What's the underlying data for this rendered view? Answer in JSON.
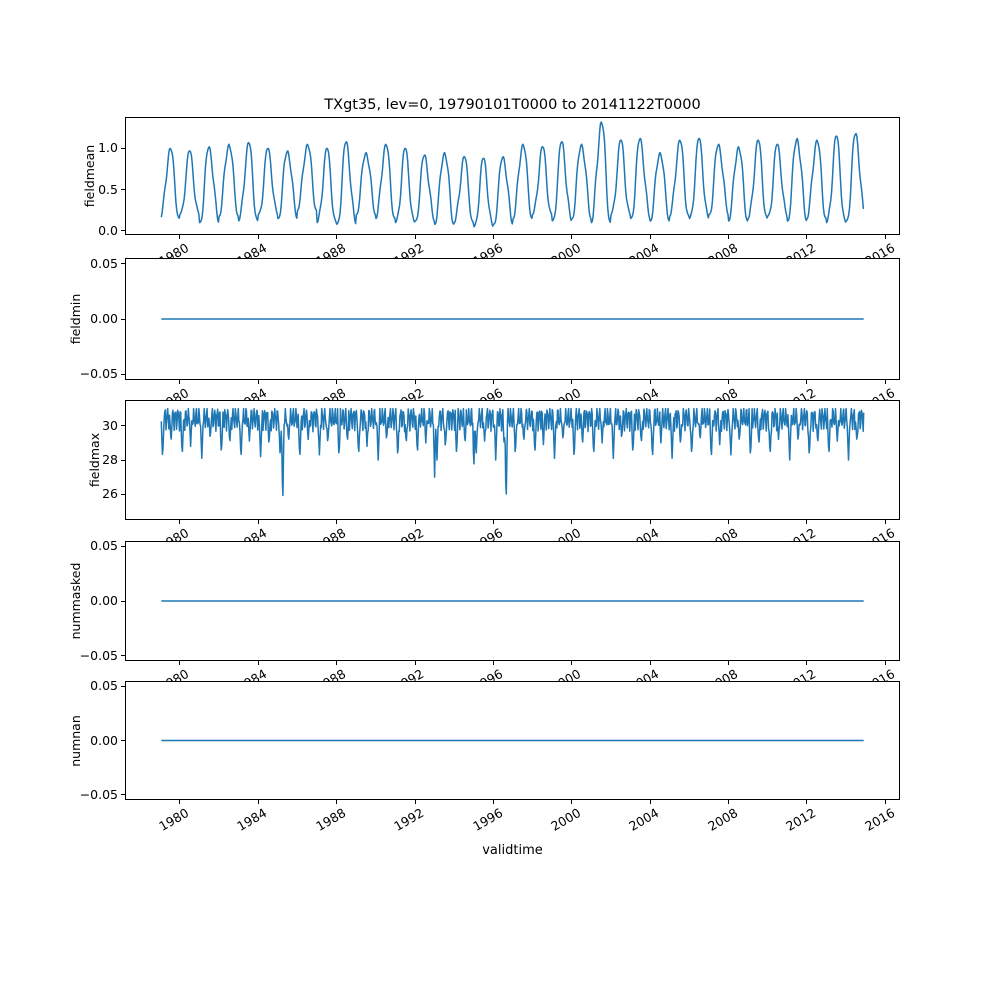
{
  "title": "TXgt35, lev=0, 19790101T0000 to 20141122T0000",
  "line_color": "#1f77b4",
  "xaxis": {
    "label": "validtime",
    "xlim": [
      1977.2,
      2016.75
    ],
    "ticks": [
      1980,
      1984,
      1988,
      1992,
      1996,
      2000,
      2004,
      2008,
      2012,
      2016
    ],
    "tick_labels": [
      "1980",
      "1984",
      "1988",
      "1992",
      "1996",
      "2000",
      "2004",
      "2008",
      "2012",
      "2016"
    ]
  },
  "chart_data": [
    {
      "name": "fieldmean",
      "type": "line",
      "ylabel": "fieldmean",
      "ylim": [
        -0.05,
        1.38
      ],
      "yticks": [
        0.0,
        0.5,
        1.0
      ],
      "ytick_labels": [
        "0.0",
        "0.5",
        "1.0"
      ],
      "series": {
        "kind": "seasonal",
        "x_start": 1979.05,
        "x_end": 2014.9,
        "base_year": 1979,
        "annual_peaks": [
          1.0,
          0.97,
          1.02,
          1.05,
          1.07,
          1.0,
          0.97,
          1.05,
          1.0,
          1.08,
          0.95,
          1.05,
          1.0,
          0.92,
          0.95,
          0.9,
          0.88,
          0.9,
          1.05,
          1.02,
          1.08,
          1.05,
          1.32,
          1.1,
          1.12,
          0.95,
          1.1,
          1.12,
          1.05,
          1.02,
          1.1,
          1.05,
          1.12,
          1.1,
          1.15,
          1.18
        ],
        "annual_troughs": [
          0.15,
          0.2,
          0.1,
          0.18,
          0.12,
          0.2,
          0.15,
          0.25,
          0.1,
          0.08,
          0.2,
          0.15,
          0.1,
          0.12,
          0.08,
          0.1,
          0.05,
          0.08,
          0.15,
          0.2,
          0.12,
          0.15,
          0.1,
          0.2,
          0.15,
          0.12,
          0.18,
          0.15,
          0.2,
          0.12,
          0.15,
          0.18,
          0.12,
          0.15,
          0.1,
          0.12
        ]
      }
    },
    {
      "name": "fieldmin",
      "type": "line",
      "ylabel": "fieldmin",
      "ylim": [
        -0.055,
        0.055
      ],
      "yticks": [
        -0.05,
        0.0,
        0.05
      ],
      "ytick_labels": [
        "−0.05",
        "0.00",
        "0.05"
      ],
      "series": {
        "kind": "flat",
        "x_start": 1979.05,
        "x_end": 2014.9,
        "value": 0.0
      }
    },
    {
      "name": "fieldmax",
      "type": "line",
      "ylabel": "fieldmax",
      "ylim": [
        24.5,
        31.5
      ],
      "yticks": [
        26,
        28,
        30
      ],
      "ytick_labels": [
        "26",
        "28",
        "30"
      ],
      "series": {
        "kind": "capped",
        "x_start": 1979.05,
        "x_end": 2014.9,
        "base_year": 1979,
        "cap": 31.0,
        "base": 30.45,
        "amp1": 0.55,
        "freq1": 47.0,
        "amp2": 0.25,
        "freq2": 91.3,
        "shoulder": 30.3,
        "annual_dips1": [
          28.0,
          28.2,
          28.1,
          28.3,
          28.0,
          28.2,
          28.1,
          28.0,
          28.3,
          28.1,
          28.2,
          28.0,
          28.1,
          28.3,
          28.0,
          28.2,
          28.1,
          28.0,
          28.2,
          28.3,
          28.1,
          28.0,
          28.2,
          28.1,
          28.3,
          28.0,
          28.1,
          28.2,
          28.0,
          28.3,
          28.1,
          28.2,
          28.0,
          28.1,
          28.2,
          28.0
        ],
        "annual_dips2": [
          29.0,
          28.8,
          29.2,
          28.9,
          29.1,
          28.8,
          29.0,
          29.2,
          28.9,
          29.0,
          28.8,
          29.1,
          28.9,
          29.0,
          28.6,
          28.9,
          29.1,
          28.8,
          29.0,
          28.9,
          29.1,
          28.8,
          29.0,
          29.2,
          28.9,
          29.0,
          28.8,
          29.1,
          28.9,
          29.0,
          28.8,
          29.2,
          29.0,
          28.9,
          29.1,
          29.0
        ],
        "extra_dips": [
          [
            1985.25,
            25.2,
            0.07
          ],
          [
            1993.0,
            27.0,
            0.06
          ],
          [
            1995.0,
            27.15,
            0.05
          ],
          [
            1996.65,
            25.3,
            0.07
          ]
        ]
      }
    },
    {
      "name": "nummasked",
      "type": "line",
      "ylabel": "nummasked",
      "ylim": [
        -0.055,
        0.055
      ],
      "yticks": [
        -0.05,
        0.0,
        0.05
      ],
      "ytick_labels": [
        "−0.05",
        "0.00",
        "0.05"
      ],
      "series": {
        "kind": "flat",
        "x_start": 1979.05,
        "x_end": 2014.9,
        "value": 0.0
      }
    },
    {
      "name": "numnan",
      "type": "line",
      "ylabel": "numnan",
      "ylim": [
        -0.055,
        0.055
      ],
      "yticks": [
        -0.05,
        0.0,
        0.05
      ],
      "ytick_labels": [
        "−0.05",
        "0.00",
        "0.05"
      ],
      "series": {
        "kind": "flat",
        "x_start": 1979.05,
        "x_end": 2014.9,
        "value": 0.0
      }
    }
  ]
}
